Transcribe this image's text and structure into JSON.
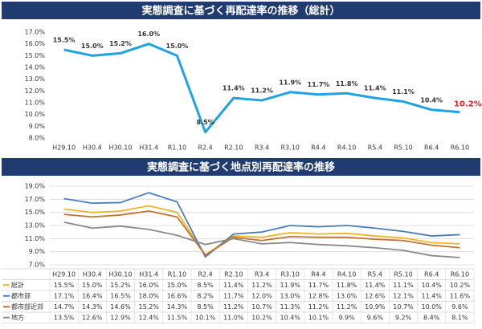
{
  "chart_data": [
    {
      "type": "line",
      "title": "実態調査に基づく再配達率の推移（総計）",
      "categories": [
        "H29.10",
        "H30.4",
        "H30.10",
        "H31.4",
        "R1.10",
        "R2.4",
        "R2.10",
        "R3.4",
        "R3.10",
        "R4.4",
        "R4.10",
        "R5.4",
        "R5.10",
        "R6.4",
        "R6.10"
      ],
      "values": [
        15.5,
        15.0,
        15.2,
        16.0,
        15.0,
        8.5,
        11.4,
        11.2,
        11.9,
        11.7,
        11.8,
        11.4,
        11.1,
        10.4,
        10.2
      ],
      "value_labels": [
        "15.5%",
        "15.0%",
        "15.2%",
        "16.0%",
        "15.0%",
        "8.5%",
        "11.4%",
        "11.2%",
        "11.9%",
        "11.7%",
        "11.8%",
        "11.4%",
        "11.1%",
        "10.4%",
        "10.2%"
      ],
      "color": "#1ea3e3",
      "last_label_color": "#e02020",
      "ylim": [
        8.0,
        17.0
      ],
      "yticks": [
        {
          "value": 8.0,
          "label": "8.0%"
        },
        {
          "value": 9.0,
          "label": "9.0%"
        },
        {
          "value": 10.0,
          "label": "10.0%"
        },
        {
          "value": 11.0,
          "label": "11.0%"
        },
        {
          "value": 12.0,
          "label": "12.0%"
        },
        {
          "value": 13.0,
          "label": "13.0%"
        },
        {
          "value": 14.0,
          "label": "14.0%"
        },
        {
          "value": 15.0,
          "label": "15.0%"
        },
        {
          "value": 16.0,
          "label": "16.0%"
        },
        {
          "value": 17.0,
          "label": "17.0%"
        }
      ],
      "grid": false
    },
    {
      "type": "line",
      "title": "実態調査に基づく地点別再配達率の推移",
      "categories": [
        "H29.10",
        "H30.4",
        "H30.10",
        "H31.4",
        "R1.10",
        "R2.4",
        "R2.10",
        "R3.4",
        "R3.10",
        "R4.4",
        "R4.10",
        "R5.4",
        "R5.10",
        "R6.4",
        "R6.10"
      ],
      "series": [
        {
          "name": "総計",
          "color": "#f0b520",
          "values": [
            15.5,
            15.0,
            15.2,
            16.0,
            15.0,
            8.5,
            11.4,
            11.2,
            11.9,
            11.7,
            11.8,
            11.4,
            11.1,
            10.4,
            10.2
          ],
          "value_labels": [
            "15.5%",
            "15.0%",
            "15.2%",
            "16.0%",
            "15.0%",
            "8.5%",
            "11.4%",
            "11.2%",
            "11.9%",
            "11.7%",
            "11.8%",
            "11.4%",
            "11.1%",
            "10.4%",
            "10.2%"
          ]
        },
        {
          "name": "都市部",
          "color": "#4a7ebb",
          "values": [
            17.1,
            16.4,
            16.5,
            18.0,
            16.6,
            8.2,
            11.7,
            12.0,
            13.0,
            12.8,
            13.0,
            12.6,
            12.1,
            11.4,
            11.6
          ],
          "value_labels": [
            "17.1%",
            "16.4%",
            "16.5%",
            "18.0%",
            "16.6%",
            "8.2%",
            "11.7%",
            "12.0%",
            "13.0%",
            "12.8%",
            "13.0%",
            "12.6%",
            "12.1%",
            "11.4%",
            "11.6%"
          ]
        },
        {
          "name": "都市部近郊",
          "color": "#c0722e",
          "values": [
            14.7,
            14.3,
            14.6,
            15.2,
            14.3,
            8.5,
            11.2,
            10.7,
            11.3,
            11.2,
            11.2,
            10.9,
            10.7,
            10.0,
            9.6
          ],
          "value_labels": [
            "14.7%",
            "14.3%",
            "14.6%",
            "15.2%",
            "14.3%",
            "8.5%",
            "11.2%",
            "10.7%",
            "11.3%",
            "11.2%",
            "11.2%",
            "10.9%",
            "10.7%",
            "10.0%",
            "9.6%"
          ]
        },
        {
          "name": "地方",
          "color": "#8a8a8a",
          "values": [
            13.5,
            12.6,
            12.9,
            12.4,
            11.5,
            10.1,
            11.0,
            10.2,
            10.4,
            10.1,
            9.9,
            9.6,
            9.2,
            8.4,
            8.1
          ],
          "value_labels": [
            "13.5%",
            "12.6%",
            "12.9%",
            "12.4%",
            "11.5%",
            "10.1%",
            "11.0%",
            "10.2%",
            "10.4%",
            "10.1%",
            "9.9%",
            "9.6%",
            "9.2%",
            "8.4%",
            "8.1%"
          ]
        }
      ],
      "ylim": [
        7.0,
        19.0
      ],
      "yticks": [
        {
          "value": 7.0,
          "label": "7.0%"
        },
        {
          "value": 9.0,
          "label": "9.0%"
        },
        {
          "value": 11.0,
          "label": "11.0%"
        },
        {
          "value": 13.0,
          "label": "13.0%"
        },
        {
          "value": 15.0,
          "label": "15.0%"
        },
        {
          "value": 17.0,
          "label": "17.0%"
        },
        {
          "value": 19.0,
          "label": "19.0%"
        }
      ],
      "grid": true,
      "data_table": true
    }
  ]
}
